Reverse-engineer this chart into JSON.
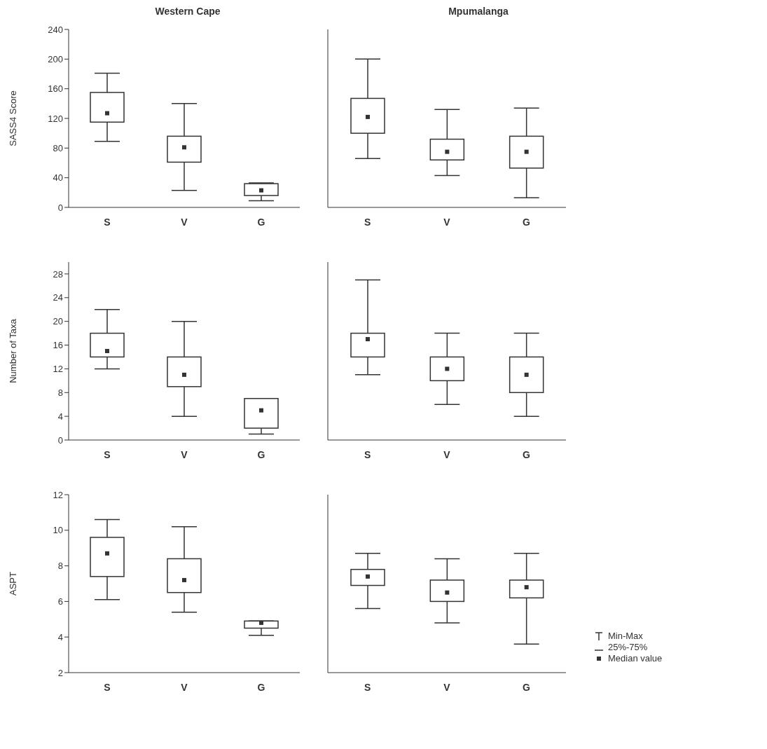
{
  "chart_data": [
    {
      "type": "box",
      "title": "Western Cape",
      "ylabel": "SASS4 Score",
      "categories": [
        "S",
        "V",
        "G"
      ],
      "ylim": [
        0,
        240
      ],
      "yticks": [
        0,
        40,
        80,
        120,
        160,
        200,
        240
      ],
      "series": [
        {
          "color": "#333333",
          "boxes": [
            {
              "low": 89,
              "q1": 115,
              "median": 127,
              "q3": 155,
              "high": 181
            },
            {
              "low": 23,
              "q1": 61,
              "median": 81,
              "q3": 96,
              "high": 140
            },
            {
              "low": 9,
              "q1": 16,
              "median": 23,
              "q3": 32,
              "high": 33
            }
          ]
        }
      ]
    },
    {
      "type": "box",
      "title": "Mpumalanga",
      "categories": [
        "S",
        "V",
        "G"
      ],
      "ylim": [
        0,
        240
      ],
      "yticks": [
        0,
        40,
        80,
        120,
        160,
        200,
        240
      ],
      "tick_labels": "x",
      "series": [
        {
          "color": "#333333",
          "boxes": [
            {
              "low": 66,
              "q1": 100,
              "median": 122,
              "q3": 147,
              "high": 200
            },
            {
              "low": 43,
              "q1": 64,
              "median": 75,
              "q3": 92,
              "high": 132
            },
            {
              "low": 13,
              "q1": 53,
              "median": 75,
              "q3": 96,
              "high": 134
            }
          ]
        }
      ]
    },
    {
      "type": "box",
      "ylabel": "Number of Taxa",
      "categories": [
        "S",
        "V",
        "G"
      ],
      "ylim": [
        0,
        30
      ],
      "yticks": [
        0,
        4,
        8,
        12,
        16,
        20,
        24,
        28
      ],
      "series": [
        {
          "color": "#333333",
          "boxes": [
            {
              "low": 12,
              "q1": 14,
              "median": 15,
              "q3": 18,
              "high": 22
            },
            {
              "low": 4,
              "q1": 9,
              "median": 11,
              "q3": 14,
              "high": 20
            },
            {
              "low": 1,
              "q1": 2,
              "median": 5,
              "q3": 7,
              "high": 7
            }
          ]
        }
      ]
    },
    {
      "type": "box",
      "categories": [
        "S",
        "V",
        "G"
      ],
      "ylim": [
        0,
        30
      ],
      "yticks": [
        0,
        4,
        8,
        12,
        16,
        20,
        24,
        28
      ],
      "tick_labels": "x",
      "series": [
        {
          "color": "#333333",
          "boxes": [
            {
              "low": 11,
              "q1": 14,
              "median": 17,
              "q3": 18,
              "high": 27
            },
            {
              "low": 6,
              "q1": 10,
              "median": 12,
              "q3": 14,
              "high": 18
            },
            {
              "low": 4,
              "q1": 8,
              "median": 11,
              "q3": 14,
              "high": 18
            }
          ]
        }
      ]
    },
    {
      "type": "box",
      "ylabel": "ASPT",
      "categories": [
        "S",
        "V",
        "G"
      ],
      "ylim": [
        2,
        12
      ],
      "yticks": [
        2,
        4,
        6,
        8,
        10,
        12
      ],
      "series": [
        {
          "color": "#333333",
          "boxes": [
            {
              "low": 6.1,
              "q1": 7.4,
              "median": 8.7,
              "q3": 9.6,
              "high": 10.6
            },
            {
              "low": 5.4,
              "q1": 6.5,
              "median": 7.2,
              "q3": 8.4,
              "high": 10.2
            },
            {
              "low": 4.1,
              "q1": 4.5,
              "median": 4.8,
              "q3": 4.9,
              "high": 4.9
            }
          ]
        }
      ]
    },
    {
      "type": "box",
      "categories": [
        "S",
        "V",
        "G"
      ],
      "ylim": [
        2,
        12
      ],
      "yticks": [
        2,
        4,
        6,
        8,
        10,
        12
      ],
      "tick_labels": "x",
      "annotations": [
        "Min-Max",
        "25%-75%",
        "Median value"
      ],
      "series": [
        {
          "color": "#333333",
          "boxes": [
            {
              "low": 5.6,
              "q1": 6.9,
              "median": 7.4,
              "q3": 7.8,
              "high": 8.7
            },
            {
              "low": 4.8,
              "q1": 6.0,
              "median": 6.5,
              "q3": 7.2,
              "high": 8.4
            },
            {
              "low": 3.6,
              "q1": 6.2,
              "median": 6.8,
              "q3": 7.2,
              "high": 8.7
            }
          ]
        }
      ]
    }
  ]
}
